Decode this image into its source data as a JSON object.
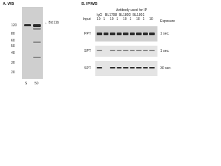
{
  "panel_a": {
    "title": "A. WB",
    "band_label": "Bcl11b",
    "markers": [
      "120",
      "80",
      "60",
      "50",
      "40",
      "30",
      "20"
    ],
    "lanes": [
      "S",
      "50"
    ]
  },
  "panel_b": {
    "title": "B. IP/WB",
    "header": "Antibody used for IP",
    "groups": [
      "IgG",
      "BL1798",
      "BL1800",
      "BL1801"
    ],
    "input_label": "Input",
    "lanes": [
      "10",
      "1",
      "10",
      "1",
      "10",
      "1",
      "10",
      "1",
      "10"
    ],
    "exposure_header": "Exposure",
    "rows": [
      {
        "label": "PPT",
        "exposure": "1 sec."
      },
      {
        "label": "SPT",
        "exposure": "1 sec."
      },
      {
        "label": "SPT",
        "exposure": "30 sec."
      }
    ]
  }
}
